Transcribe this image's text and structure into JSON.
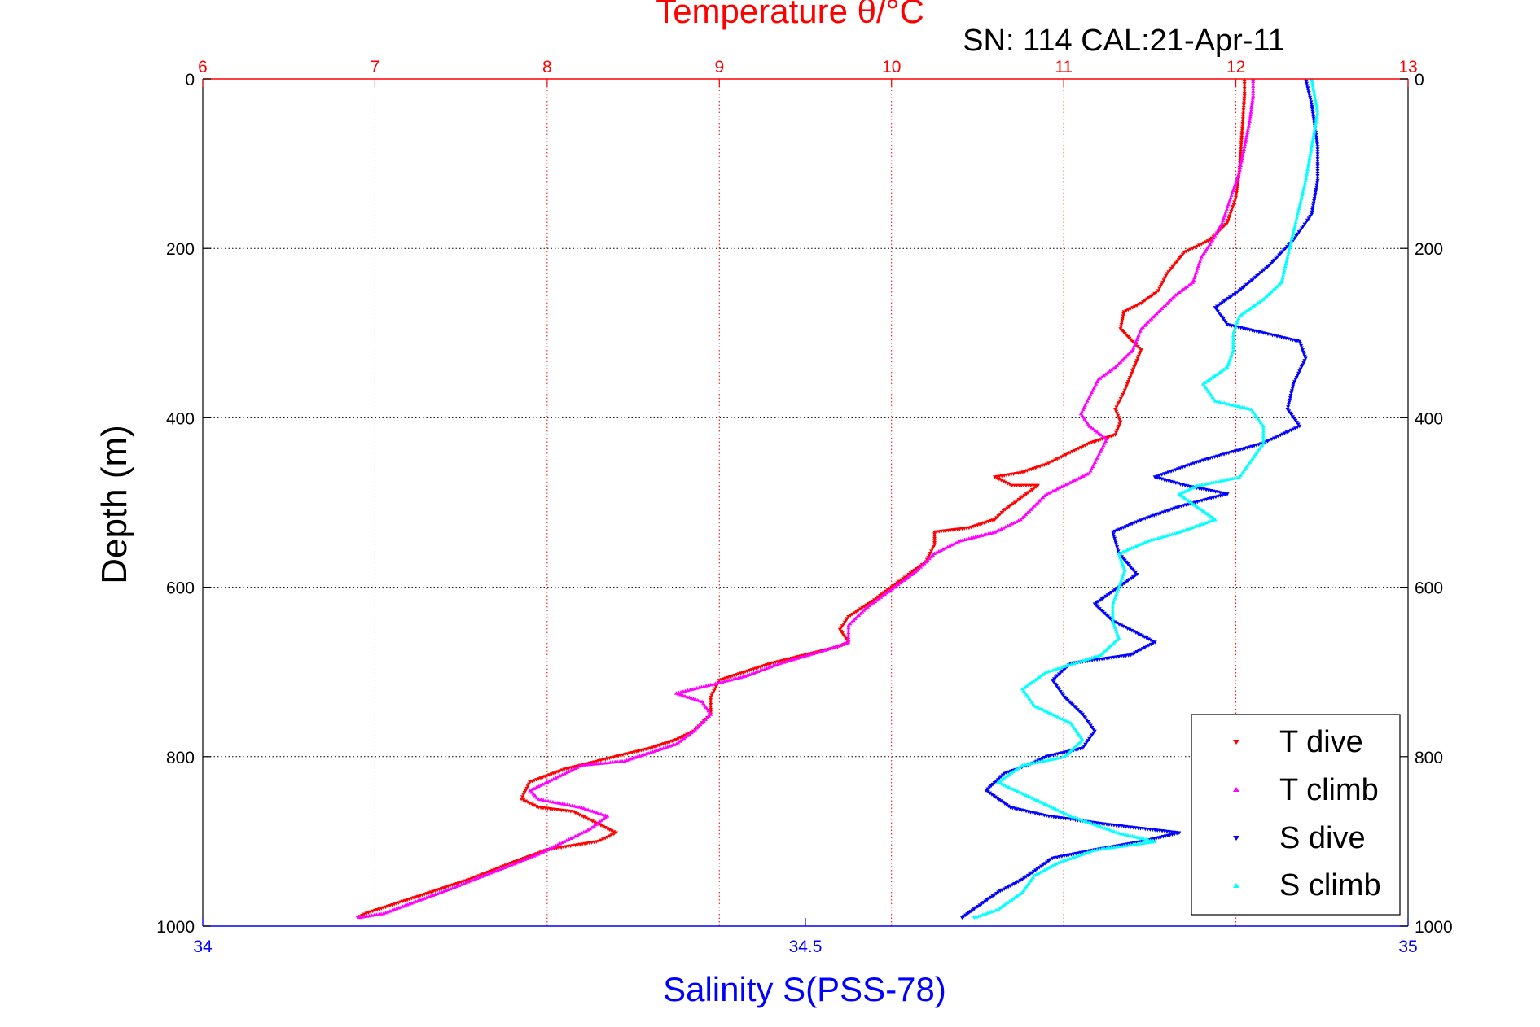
{
  "chart_data": {
    "type": "scatter",
    "title": "Temperature θ/°C",
    "annotation": "SN: 114  CAL:21-Apr-11",
    "xlabel": "Salinity S(PSS-78)",
    "ylabel": "Depth (m)",
    "y_axis": {
      "range": [
        0,
        1000
      ],
      "reversed": true,
      "ticks": [
        "0",
        "200",
        "400",
        "600",
        "800",
        "1000"
      ],
      "grid": true
    },
    "x_axis_top": {
      "quantity": "temperature",
      "range": [
        6,
        13
      ],
      "ticks": [
        "6",
        "7",
        "8",
        "9",
        "10",
        "11",
        "12",
        "13"
      ],
      "grid": true,
      "color": "#ff0000"
    },
    "x_axis_bottom": {
      "quantity": "salinity",
      "range": [
        34,
        35
      ],
      "ticks": [
        "34",
        "34.5",
        "35"
      ],
      "grid": false,
      "color": "#0000ff"
    },
    "legend": {
      "placement": "bottom-right"
    },
    "series": [
      {
        "name": "T dive",
        "axis": "temperature",
        "color": "#ff0000",
        "marker": "triangle-down",
        "points": [
          [
            12.05,
            0
          ],
          [
            12.05,
            20
          ],
          [
            12.04,
            50
          ],
          [
            12.03,
            80
          ],
          [
            12.02,
            110
          ],
          [
            12.0,
            140
          ],
          [
            11.95,
            170
          ],
          [
            11.85,
            190
          ],
          [
            11.7,
            205
          ],
          [
            11.6,
            230
          ],
          [
            11.55,
            250
          ],
          [
            11.45,
            265
          ],
          [
            11.35,
            275
          ],
          [
            11.33,
            295
          ],
          [
            11.4,
            310
          ],
          [
            11.45,
            320
          ],
          [
            11.4,
            345
          ],
          [
            11.35,
            370
          ],
          [
            11.3,
            390
          ],
          [
            11.33,
            405
          ],
          [
            11.3,
            420
          ],
          [
            11.15,
            430
          ],
          [
            11.05,
            440
          ],
          [
            10.9,
            455
          ],
          [
            10.75,
            465
          ],
          [
            10.6,
            470
          ],
          [
            10.7,
            480
          ],
          [
            10.85,
            480
          ],
          [
            10.75,
            495
          ],
          [
            10.65,
            510
          ],
          [
            10.6,
            520
          ],
          [
            10.45,
            530
          ],
          [
            10.25,
            535
          ],
          [
            10.25,
            550
          ],
          [
            10.2,
            570
          ],
          [
            10.1,
            585
          ],
          [
            10.0,
            600
          ],
          [
            9.9,
            615
          ],
          [
            9.75,
            635
          ],
          [
            9.7,
            650
          ],
          [
            9.75,
            665
          ],
          [
            9.7,
            670
          ],
          [
            9.5,
            680
          ],
          [
            9.3,
            690
          ],
          [
            9.15,
            700
          ],
          [
            9.0,
            710
          ],
          [
            8.95,
            730
          ],
          [
            8.95,
            750
          ],
          [
            8.85,
            770
          ],
          [
            8.75,
            780
          ],
          [
            8.6,
            790
          ],
          [
            8.4,
            800
          ],
          [
            8.3,
            805
          ],
          [
            8.1,
            815
          ],
          [
            7.9,
            830
          ],
          [
            7.85,
            850
          ],
          [
            7.95,
            860
          ],
          [
            8.15,
            865
          ],
          [
            8.3,
            880
          ],
          [
            8.4,
            890
          ],
          [
            8.3,
            900
          ],
          [
            8.0,
            910
          ],
          [
            7.8,
            925
          ],
          [
            7.55,
            945
          ],
          [
            7.4,
            955
          ],
          [
            7.25,
            965
          ],
          [
            7.1,
            975
          ],
          [
            6.95,
            985
          ],
          [
            6.9,
            990
          ]
        ]
      },
      {
        "name": "T climb",
        "axis": "temperature",
        "color": "#ff00ff",
        "marker": "triangle-up",
        "points": [
          [
            12.1,
            0
          ],
          [
            12.1,
            20
          ],
          [
            12.08,
            50
          ],
          [
            12.05,
            80
          ],
          [
            12.02,
            110
          ],
          [
            11.97,
            140
          ],
          [
            11.92,
            170
          ],
          [
            11.85,
            195
          ],
          [
            11.8,
            210
          ],
          [
            11.75,
            240
          ],
          [
            11.65,
            255
          ],
          [
            11.55,
            275
          ],
          [
            11.45,
            295
          ],
          [
            11.4,
            320
          ],
          [
            11.3,
            340
          ],
          [
            11.2,
            355
          ],
          [
            11.15,
            375
          ],
          [
            11.1,
            395
          ],
          [
            11.15,
            410
          ],
          [
            11.25,
            425
          ],
          [
            11.2,
            445
          ],
          [
            11.15,
            465
          ],
          [
            11.0,
            480
          ],
          [
            10.9,
            490
          ],
          [
            10.85,
            500
          ],
          [
            10.75,
            520
          ],
          [
            10.6,
            535
          ],
          [
            10.5,
            540
          ],
          [
            10.4,
            545
          ],
          [
            10.25,
            560
          ],
          [
            10.15,
            580
          ],
          [
            10.05,
            595
          ],
          [
            9.95,
            610
          ],
          [
            9.85,
            625
          ],
          [
            9.75,
            645
          ],
          [
            9.75,
            665
          ],
          [
            9.6,
            675
          ],
          [
            9.35,
            690
          ],
          [
            9.15,
            705
          ],
          [
            8.95,
            715
          ],
          [
            8.75,
            725
          ],
          [
            8.9,
            735
          ],
          [
            8.95,
            750
          ],
          [
            8.85,
            770
          ],
          [
            8.75,
            785
          ],
          [
            8.6,
            795
          ],
          [
            8.45,
            805
          ],
          [
            8.2,
            810
          ],
          [
            8.1,
            820
          ],
          [
            7.9,
            840
          ],
          [
            7.95,
            850
          ],
          [
            8.2,
            860
          ],
          [
            8.35,
            870
          ],
          [
            8.25,
            885
          ],
          [
            8.1,
            900
          ],
          [
            7.95,
            915
          ],
          [
            7.7,
            935
          ],
          [
            7.45,
            955
          ],
          [
            7.25,
            970
          ],
          [
            7.05,
            985
          ],
          [
            6.9,
            990
          ]
        ]
      },
      {
        "name": "S dive",
        "axis": "salinity",
        "color": "#0000ff",
        "marker": "triangle-down",
        "points": [
          [
            34.915,
            0
          ],
          [
            34.92,
            30
          ],
          [
            34.925,
            80
          ],
          [
            34.925,
            120
          ],
          [
            34.92,
            160
          ],
          [
            34.905,
            190
          ],
          [
            34.885,
            220
          ],
          [
            34.86,
            250
          ],
          [
            34.84,
            270
          ],
          [
            34.85,
            290
          ],
          [
            34.88,
            300
          ],
          [
            34.91,
            310
          ],
          [
            34.915,
            330
          ],
          [
            34.905,
            360
          ],
          [
            34.9,
            390
          ],
          [
            34.91,
            410
          ],
          [
            34.88,
            430
          ],
          [
            34.83,
            450
          ],
          [
            34.79,
            470
          ],
          [
            34.815,
            480
          ],
          [
            34.85,
            490
          ],
          [
            34.81,
            505
          ],
          [
            34.78,
            520
          ],
          [
            34.755,
            535
          ],
          [
            34.76,
            560
          ],
          [
            34.775,
            585
          ],
          [
            34.76,
            600
          ],
          [
            34.74,
            620
          ],
          [
            34.755,
            640
          ],
          [
            34.79,
            665
          ],
          [
            34.77,
            680
          ],
          [
            34.72,
            690
          ],
          [
            34.705,
            710
          ],
          [
            34.715,
            730
          ],
          [
            34.73,
            750
          ],
          [
            34.74,
            770
          ],
          [
            34.73,
            790
          ],
          [
            34.7,
            800
          ],
          [
            34.685,
            810
          ],
          [
            34.665,
            820
          ],
          [
            34.65,
            840
          ],
          [
            34.67,
            860
          ],
          [
            34.7,
            870
          ],
          [
            34.75,
            880
          ],
          [
            34.81,
            890
          ],
          [
            34.78,
            900
          ],
          [
            34.74,
            910
          ],
          [
            34.705,
            920
          ],
          [
            34.68,
            945
          ],
          [
            34.66,
            960
          ],
          [
            34.64,
            980
          ],
          [
            34.63,
            990
          ]
        ]
      },
      {
        "name": "S climb",
        "axis": "salinity",
        "color": "#00ffff",
        "marker": "triangle-up",
        "points": [
          [
            34.92,
            0
          ],
          [
            34.925,
            40
          ],
          [
            34.92,
            80
          ],
          [
            34.915,
            120
          ],
          [
            34.91,
            150
          ],
          [
            34.905,
            180
          ],
          [
            34.9,
            210
          ],
          [
            34.895,
            240
          ],
          [
            34.88,
            260
          ],
          [
            34.86,
            280
          ],
          [
            34.855,
            300
          ],
          [
            34.855,
            320
          ],
          [
            34.85,
            340
          ],
          [
            34.83,
            360
          ],
          [
            34.84,
            380
          ],
          [
            34.87,
            390
          ],
          [
            34.88,
            410
          ],
          [
            34.88,
            430
          ],
          [
            34.87,
            450
          ],
          [
            34.86,
            470
          ],
          [
            34.825,
            480
          ],
          [
            34.81,
            490
          ],
          [
            34.83,
            510
          ],
          [
            34.84,
            520
          ],
          [
            34.81,
            535
          ],
          [
            34.785,
            545
          ],
          [
            34.76,
            560
          ],
          [
            34.765,
            580
          ],
          [
            34.76,
            600
          ],
          [
            34.755,
            620
          ],
          [
            34.755,
            640
          ],
          [
            34.76,
            660
          ],
          [
            34.745,
            680
          ],
          [
            34.7,
            700
          ],
          [
            34.68,
            720
          ],
          [
            34.69,
            740
          ],
          [
            34.72,
            760
          ],
          [
            34.73,
            780
          ],
          [
            34.715,
            800
          ],
          [
            34.68,
            810
          ],
          [
            34.66,
            830
          ],
          [
            34.69,
            850
          ],
          [
            34.72,
            870
          ],
          [
            34.76,
            890
          ],
          [
            34.79,
            900
          ],
          [
            34.74,
            910
          ],
          [
            34.71,
            925
          ],
          [
            34.69,
            940
          ],
          [
            34.68,
            960
          ],
          [
            34.66,
            980
          ],
          [
            34.64,
            990
          ]
        ]
      }
    ]
  }
}
